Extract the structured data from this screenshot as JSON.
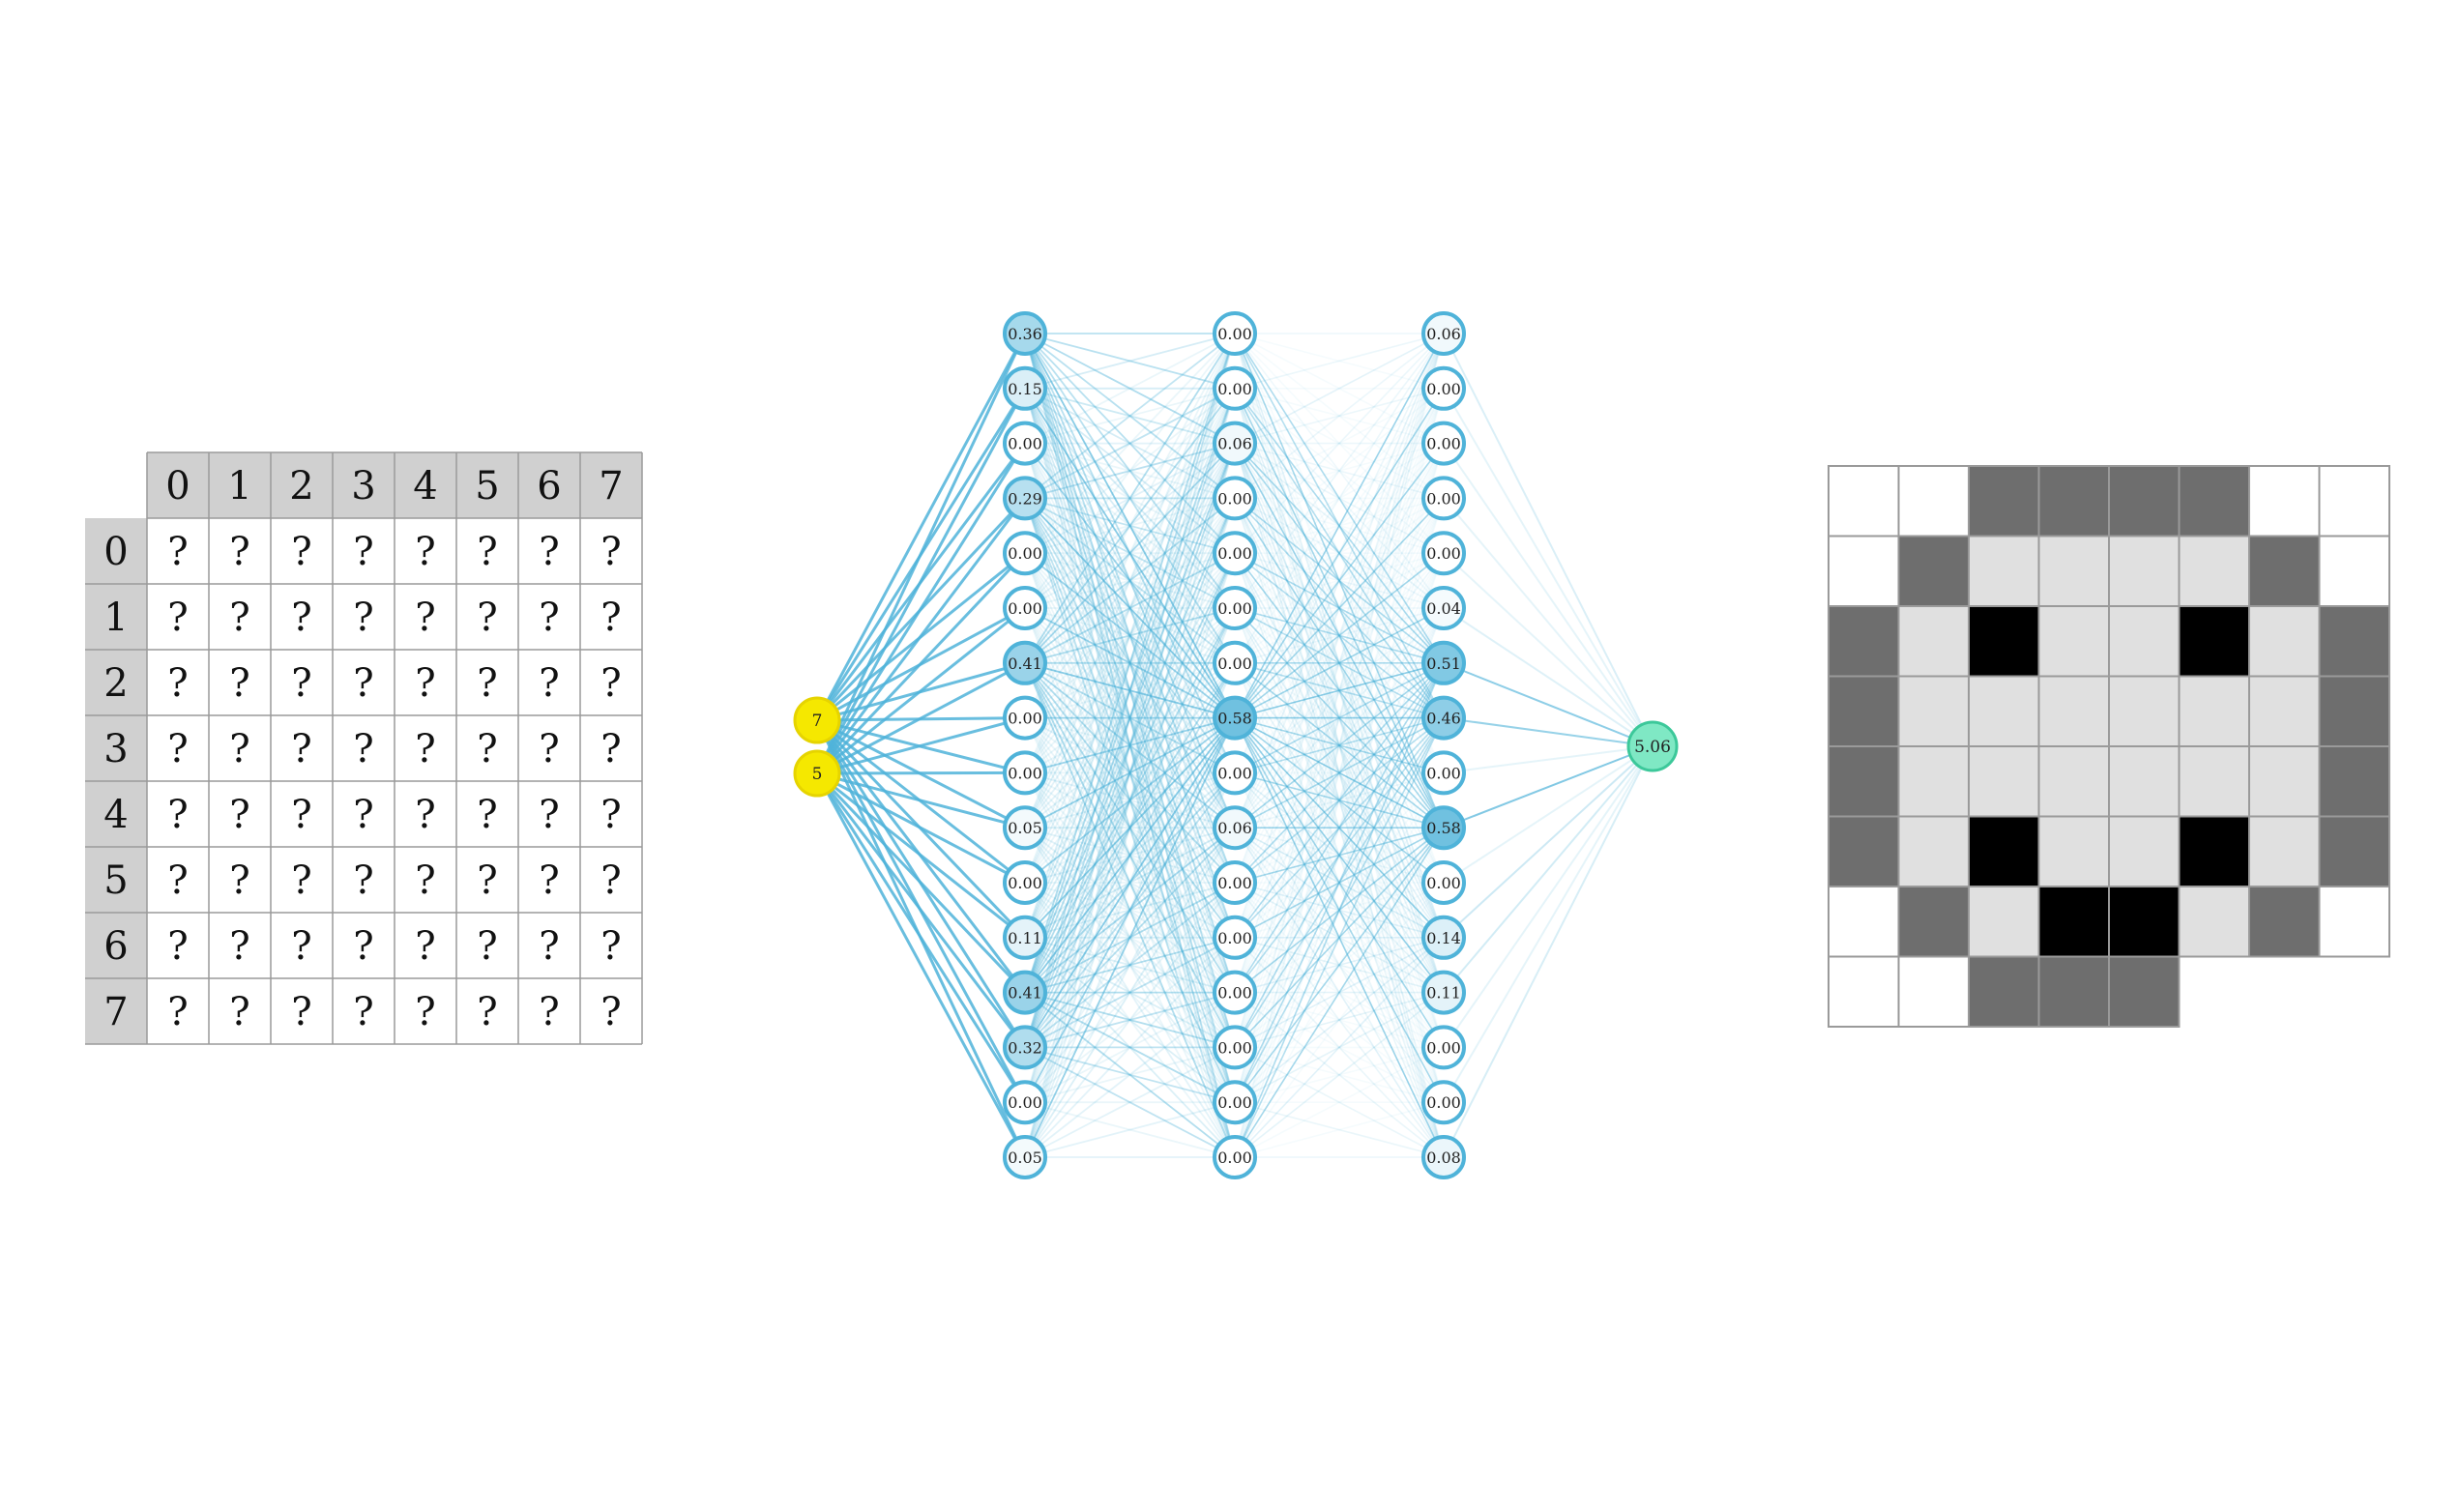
{
  "table": {
    "col_headers": [
      "0",
      "1",
      "2",
      "3",
      "4",
      "5",
      "6",
      "7"
    ],
    "row_headers": [
      "0",
      "1",
      "2",
      "3",
      "4",
      "5",
      "6",
      "7"
    ],
    "cell_text": "?",
    "header_color": "#d0d0d0",
    "grid_color": "#9a9a9a"
  },
  "network": {
    "inputs": [
      "7",
      "5"
    ],
    "hidden1": [
      "0.36",
      "0.15",
      "0.00",
      "0.29",
      "0.00",
      "0.00",
      "0.41",
      "0.00",
      "0.00",
      "0.05",
      "0.00",
      "0.11",
      "0.41",
      "0.32",
      "0.00",
      "0.05"
    ],
    "hidden2": [
      "0.00",
      "0.00",
      "0.06",
      "0.00",
      "0.00",
      "0.00",
      "0.00",
      "0.58",
      "0.00",
      "0.06",
      "0.00",
      "0.00",
      "0.00",
      "0.00",
      "0.00",
      "0.00"
    ],
    "hidden3": [
      "0.06",
      "0.00",
      "0.00",
      "0.00",
      "0.00",
      "0.04",
      "0.51",
      "0.46",
      "0.00",
      "0.58",
      "0.00",
      "0.14",
      "0.11",
      "0.00",
      "0.00",
      "0.08"
    ],
    "output": "5.06",
    "colors": {
      "input_fill": "#f5e800",
      "input_stroke": "#e6d400",
      "node_stroke": "#4fb3d9",
      "edge": "#4fb3d9",
      "output_fill": "#7fe8c4",
      "output_stroke": "#3cc89a"
    }
  },
  "pixel_grid": {
    "rows": [
      [
        0,
        0,
        2,
        2,
        2,
        2,
        0,
        0
      ],
      [
        0,
        2,
        1,
        1,
        1,
        1,
        2,
        0
      ],
      [
        2,
        1,
        3,
        1,
        1,
        3,
        1,
        2
      ],
      [
        2,
        1,
        1,
        1,
        1,
        1,
        1,
        2
      ],
      [
        2,
        1,
        1,
        1,
        1,
        1,
        1,
        2
      ],
      [
        2,
        1,
        3,
        1,
        1,
        3,
        1,
        2
      ],
      [
        0,
        2,
        1,
        3,
        3,
        1,
        2,
        0
      ],
      [
        0,
        0,
        2,
        2,
        2,
        null,
        null,
        null
      ]
    ],
    "legend": {
      "0": "#ffffff",
      "1": "#e0e0e0",
      "2": "#6e6e6e",
      "3": "#000000"
    },
    "grid_color": "#9a9a9a"
  }
}
